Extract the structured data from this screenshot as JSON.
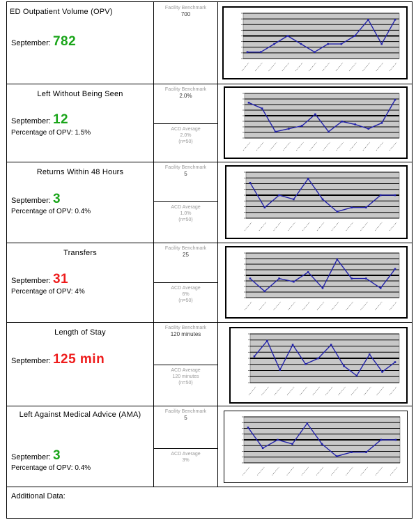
{
  "rows": [
    {
      "title": "ED Outpatient Volume (OPV)",
      "title_center": false,
      "month_label": "September:",
      "value": "782",
      "value_color": "#1aa51a",
      "percentage": "",
      "facility_label": "Facility Benchmark",
      "facility_value": "700",
      "acd_label": "",
      "acd_value": "",
      "acd_n": "",
      "chart_data": {
        "type": "line",
        "values": [
          49,
          49,
          50,
          51,
          50,
          49,
          50,
          50,
          51,
          53,
          50,
          53
        ]
      }
    },
    {
      "title": "Left Without Being Seen",
      "title_center": true,
      "month_label": "September:",
      "value": "12",
      "value_color": "#1aa51a",
      "percentage": "Percentage of OPV: 1.5%",
      "facility_label": "Facility Benchmark",
      "facility_value": "2.0%",
      "acd_label": "ACD Average",
      "acd_value": "2.0%",
      "acd_n": "(n=50)",
      "chart_data": {
        "type": "line",
        "values": [
          3.0,
          2.6,
          1.0,
          1.2,
          1.4,
          2.2,
          1.0,
          1.7,
          1.5,
          1.2,
          1.6,
          3.2
        ]
      }
    },
    {
      "title": "Returns Within 48 Hours",
      "title_center": true,
      "month_label": "September:",
      "value": "3",
      "value_color": "#1aa51a",
      "percentage": "Percentage of OPV: 0.4%",
      "facility_label": "Facility Benchmark",
      "facility_value": "5",
      "acd_label": "ACD Average",
      "acd_value": "1.0%",
      "acd_n": "(n=50)",
      "chart_data": {
        "type": "line",
        "values": [
          7,
          1,
          4,
          3,
          8,
          3,
          0,
          1,
          1,
          4,
          4
        ]
      }
    },
    {
      "title": "Transfers",
      "title_center": true,
      "month_label": "September:",
      "value": "31",
      "value_color": "#ee1c1c",
      "percentage": "Percentage of OPV: 4%",
      "facility_label": "Facility Benchmark",
      "facility_value": "25",
      "acd_label": "ACD Average",
      "acd_value": "6%",
      "acd_n": "(n=50)",
      "chart_data": {
        "type": "line",
        "values": [
          28,
          24,
          28,
          27,
          30,
          25,
          34,
          28,
          28,
          25,
          31
        ]
      }
    },
    {
      "title": "Length of Stay",
      "title_center": true,
      "month_label": "September:",
      "value": "125 min",
      "value_color": "#ee1c1c",
      "percentage": "",
      "facility_label": "Facility Benchmark",
      "facility_value": "120 minutes",
      "acd_label": "ACD Average",
      "acd_value": "120 minutes",
      "acd_n": "(n=50)",
      "chart_data": {
        "type": "line",
        "values": [
          122,
          130,
          115,
          128,
          118,
          121,
          128,
          117,
          112,
          123,
          114,
          119
        ]
      }
    },
    {
      "title": "Left Against Medical Advice (AMA)",
      "title_center": true,
      "month_label": "September:",
      "value": "3",
      "value_color": "#1aa51a",
      "percentage": "Percentage of OPV: 0.4%",
      "facility_label": "Facility Benchmark",
      "facility_value": "5",
      "acd_label": "ACD Average",
      "acd_value": "3%",
      "acd_n": "",
      "chart_data": {
        "type": "line",
        "values": [
          7,
          2,
          4,
          3,
          8,
          3,
          0,
          1,
          1,
          4,
          4
        ]
      }
    }
  ],
  "additional_label": "Additional Data:",
  "colors": {
    "line": "#2222aa",
    "plot_bg": "#c8c8c8",
    "gridline": "#000000"
  }
}
